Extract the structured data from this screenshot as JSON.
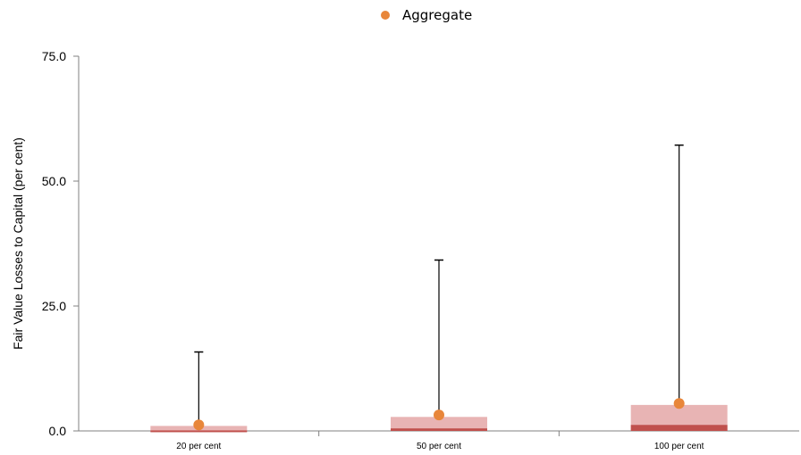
{
  "legend": {
    "label": "Aggregate",
    "color": "#e8863a"
  },
  "chart_data": {
    "type": "box",
    "ylabel": "Fair Value Losses to Capital (per cent)",
    "ylim": [
      0,
      75
    ],
    "yticks": [
      0,
      25,
      50,
      75
    ],
    "ytick_labels": [
      "0.0",
      "25.0",
      "50.0",
      "75.0"
    ],
    "categories": [
      "20 per cent",
      "50 per cent",
      "100 per cent"
    ],
    "series": [
      {
        "name": "Aggregate",
        "values": [
          1.2,
          3.2,
          5.5
        ]
      }
    ],
    "distribution": [
      {
        "low": 0.0,
        "median": 0.1,
        "high": 1.0,
        "max": 15.8
      },
      {
        "low": 0.0,
        "median": 0.5,
        "high": 2.8,
        "max": 34.2
      },
      {
        "low": 0.0,
        "median": 1.2,
        "high": 5.2,
        "max": 57.2
      }
    ],
    "colors": {
      "box": "#e8b4b4",
      "median": "#c0504d",
      "whisker": "#000000",
      "marker": "#e8863a",
      "axis": "#808080"
    },
    "grid": false,
    "legend_position": "top-center"
  }
}
